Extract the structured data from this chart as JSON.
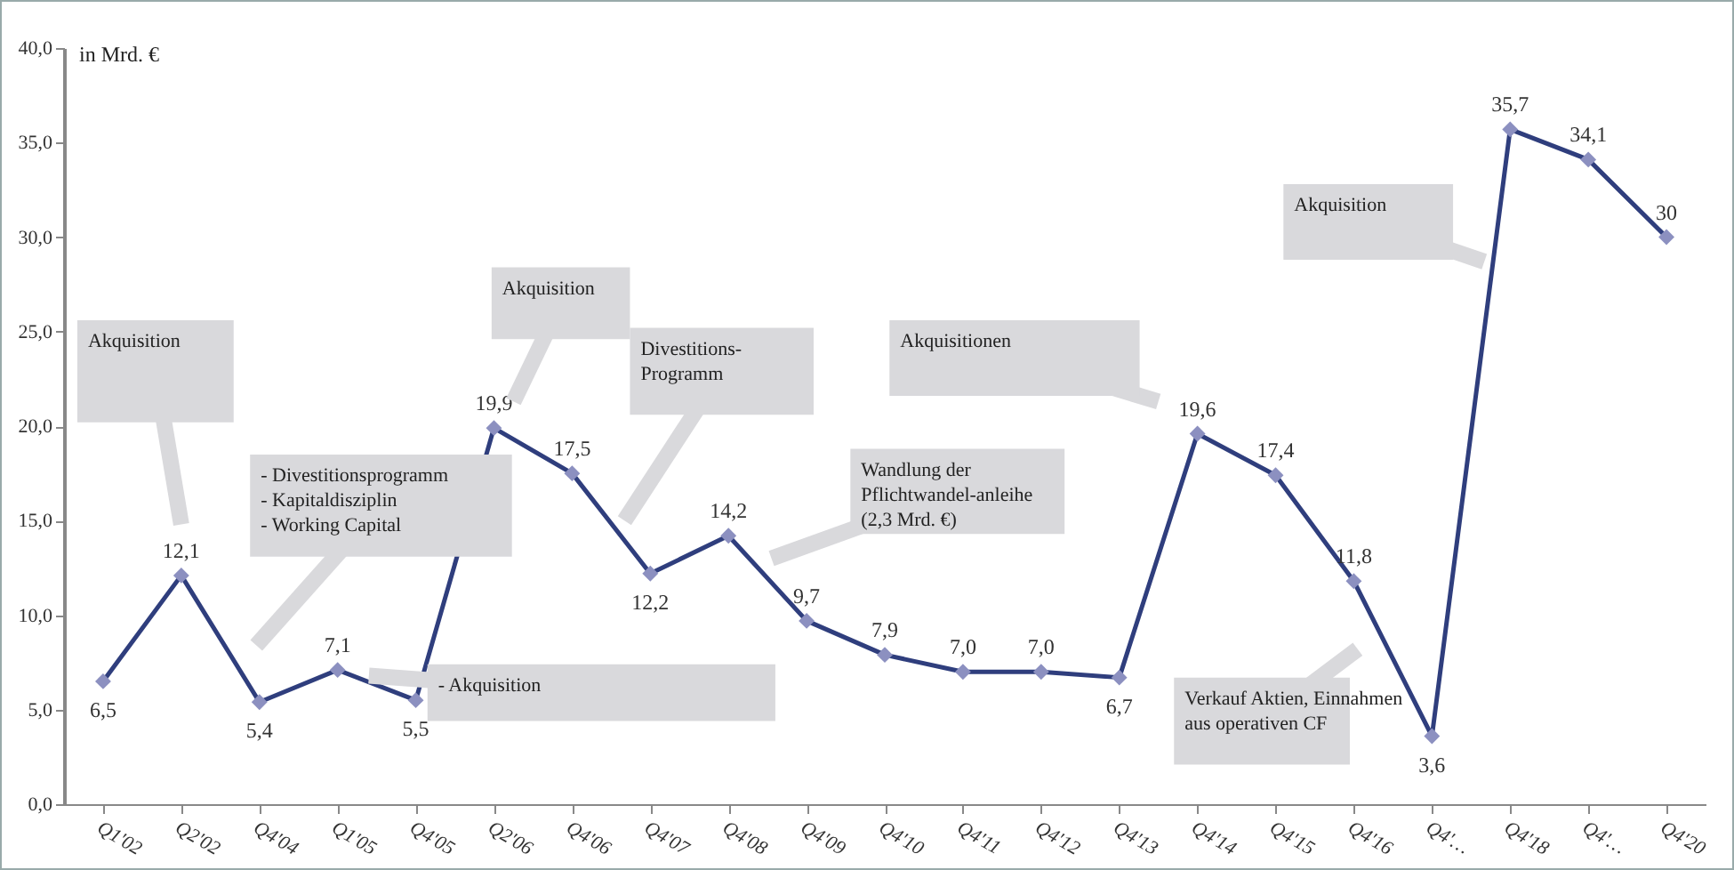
{
  "chart_data": {
    "type": "line",
    "ylabel": "in Mrd. €",
    "categories": [
      "Q1'02",
      "Q2'02",
      "Q4'04",
      "Q1'05",
      "Q4'05",
      "Q2'06",
      "Q4'06",
      "Q4'07",
      "Q4'08",
      "Q4'09",
      "Q4'10",
      "Q4'11",
      "Q4'12",
      "Q4'13",
      "Q4'14",
      "Q4'15",
      "Q4'16",
      "Q4'…",
      "Q4'18",
      "Q4'…",
      "Q4'20"
    ],
    "series": [
      {
        "color": "#2f3e7d",
        "values": [
          6.5,
          12.1,
          5.4,
          7.1,
          5.5,
          19.9,
          17.5,
          12.2,
          14.2,
          9.7,
          7.9,
          7.0,
          7.0,
          6.7,
          19.6,
          17.4,
          11.8,
          3.6,
          35.7,
          34.1,
          30
        ],
        "value_labels": [
          "6,5",
          "12,1",
          "5,4",
          "7,1",
          "5,5",
          "19,9",
          "17,5",
          "12,2",
          "14,2",
          "9,7",
          "7,9",
          "7,0",
          "7,0",
          "6,7",
          "19,6",
          "17,4",
          "11,8",
          "3,6",
          "35,7",
          "34,1",
          "30"
        ]
      }
    ],
    "ylim": [
      0,
      40
    ],
    "yticks": [
      {
        "value": 0,
        "label": "0,0"
      },
      {
        "value": 5,
        "label": "5,0"
      },
      {
        "value": 10,
        "label": "10,0"
      },
      {
        "value": 15,
        "label": "15,0"
      },
      {
        "value": 20,
        "label": "20,0"
      },
      {
        "value": 25,
        "label": "25,0"
      },
      {
        "value": 30,
        "label": "30,0"
      },
      {
        "value": 35,
        "label": "35,0"
      },
      {
        "value": 40,
        "label": "40,0"
      }
    ],
    "marker": "diamond",
    "grid": false,
    "annotations": [
      "Akquisition",
      "Akquisition",
      "- Divestitionsprogramm\n- Kapitaldisziplin\n- Working Capital",
      "Divestitions-\nProgramm",
      "- Akquisition",
      "Wandlung der\nPflichtwandel-anleihe\n(2,3 Mrd. €)",
      "Akquisitionen",
      "Verkauf Aktien, Einnahmen\naus operativen CF",
      "Akquisition"
    ]
  }
}
